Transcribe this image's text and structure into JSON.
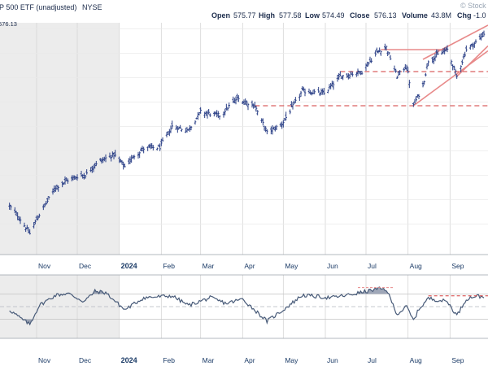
{
  "header": {
    "title": "P 500 ETF (unadjusted)",
    "exchange": "NYSE",
    "open_label": "Open",
    "open": "575.77",
    "high_label": "High",
    "high": "577.58",
    "low_label": "Low",
    "low": "574.49",
    "close_label": "Close",
    "close": "576.13",
    "volume_label": "Volume",
    "volume": "43.8M",
    "chg_label": "Chg",
    "chg": "-1.0",
    "watermark": "© Stock",
    "last_price_tag": "576.13"
  },
  "chart_data": [
    {
      "type": "ohlc",
      "title": "P 500 ETF (unadjusted)",
      "x_axis": {
        "month_labels": [
          "Nov",
          "Dec",
          "2024",
          "Feb",
          "Mar",
          "Apr",
          "May",
          "Jun",
          "Jul",
          "Aug",
          "Sep"
        ],
        "bold_labels": [
          "2024"
        ]
      },
      "ylim": [
        395,
        585
      ],
      "grid": true,
      "shaded_region": "start to end of 2023",
      "series": [
        {
          "key_points": [
            {
              "date": "2023-10-12",
              "close": 435
            },
            {
              "date": "2023-10-20",
              "close": 424
            },
            {
              "date": "2023-10-27",
              "close": 412
            },
            {
              "date": "2023-11-01",
              "close": 424
            },
            {
              "date": "2023-11-08",
              "close": 437
            },
            {
              "date": "2023-11-15",
              "close": 450
            },
            {
              "date": "2023-11-24",
              "close": 456
            },
            {
              "date": "2023-12-01",
              "close": 459
            },
            {
              "date": "2023-12-08",
              "close": 461
            },
            {
              "date": "2023-12-15",
              "close": 470
            },
            {
              "date": "2023-12-22",
              "close": 474
            },
            {
              "date": "2023-12-28",
              "close": 477
            },
            {
              "date": "2024-01-05",
              "close": 467
            },
            {
              "date": "2024-01-12",
              "close": 476
            },
            {
              "date": "2024-01-19",
              "close": 482
            },
            {
              "date": "2024-01-31",
              "close": 483
            },
            {
              "date": "2024-02-09",
              "close": 500
            },
            {
              "date": "2024-02-21",
              "close": 497
            },
            {
              "date": "2024-03-01",
              "close": 512
            },
            {
              "date": "2024-03-15",
              "close": 509
            },
            {
              "date": "2024-03-28",
              "close": 523
            },
            {
              "date": "2024-04-10",
              "close": 517
            },
            {
              "date": "2024-04-19",
              "close": 495
            },
            {
              "date": "2024-04-30",
              "close": 502
            },
            {
              "date": "2024-05-15",
              "close": 529
            },
            {
              "date": "2024-05-31",
              "close": 527
            },
            {
              "date": "2024-06-12",
              "close": 541
            },
            {
              "date": "2024-06-28",
              "close": 545
            },
            {
              "date": "2024-07-10",
              "close": 562
            },
            {
              "date": "2024-07-16",
              "close": 565
            },
            {
              "date": "2024-07-24",
              "close": 541
            },
            {
              "date": "2024-07-31",
              "close": 550
            },
            {
              "date": "2024-08-05",
              "close": 517
            },
            {
              "date": "2024-08-12",
              "close": 533
            },
            {
              "date": "2024-08-16",
              "close": 554
            },
            {
              "date": "2024-08-30",
              "close": 563
            },
            {
              "date": "2024-09-06",
              "close": 541
            },
            {
              "date": "2024-09-13",
              "close": 563
            },
            {
              "date": "2024-09-20",
              "close": 569
            },
            {
              "date": "2024-09-26",
              "close": 576
            }
          ]
        }
      ],
      "annotations": [
        {
          "type": "horizontal-dashed",
          "level": 545,
          "from": "2024-06-12",
          "to": "end"
        },
        {
          "type": "horizontal-dashed",
          "level": 517,
          "from": "2024-04-10",
          "to": "end"
        },
        {
          "type": "trendline-solid",
          "from": {
            "date": "2024-07-12",
            "value": 563
          },
          "to": {
            "date": "2024-08-30",
            "value": 563
          }
        },
        {
          "type": "trendline-solid",
          "from": {
            "date": "2024-08-05",
            "value": 517
          },
          "to": {
            "date": "end",
            "value": 562
          }
        },
        {
          "type": "trendline-solid",
          "from": {
            "date": "2024-08-12",
            "value": 555
          },
          "to": {
            "date": "end",
            "value": 583
          }
        },
        {
          "type": "trendline-solid",
          "from": {
            "date": "2024-09-06",
            "value": 541
          },
          "to": {
            "date": "end",
            "value": 566
          }
        }
      ]
    },
    {
      "type": "line",
      "indicator": "RSI",
      "ylim": [
        0,
        100
      ],
      "reference_lines": [
        70,
        50,
        30
      ],
      "fill_above": 70,
      "fill_below": 30,
      "series": [
        {
          "key_points": [
            {
              "date": "2023-10-12",
              "value": 45
            },
            {
              "date": "2023-10-20",
              "value": 32
            },
            {
              "date": "2023-10-27",
              "value": 22
            },
            {
              "date": "2023-11-03",
              "value": 52
            },
            {
              "date": "2023-11-15",
              "value": 68
            },
            {
              "date": "2023-11-24",
              "value": 71
            },
            {
              "date": "2023-12-06",
              "value": 58
            },
            {
              "date": "2023-12-14",
              "value": 74
            },
            {
              "date": "2023-12-22",
              "value": 72
            },
            {
              "date": "2024-01-05",
              "value": 45
            },
            {
              "date": "2024-01-19",
              "value": 64
            },
            {
              "date": "2024-02-09",
              "value": 67
            },
            {
              "date": "2024-02-21",
              "value": 52
            },
            {
              "date": "2024-03-08",
              "value": 64
            },
            {
              "date": "2024-03-20",
              "value": 55
            },
            {
              "date": "2024-04-01",
              "value": 62
            },
            {
              "date": "2024-04-19",
              "value": 27
            },
            {
              "date": "2024-05-01",
              "value": 45
            },
            {
              "date": "2024-05-15",
              "value": 68
            },
            {
              "date": "2024-06-05",
              "value": 64
            },
            {
              "date": "2024-06-20",
              "value": 69
            },
            {
              "date": "2024-07-10",
              "value": 78
            },
            {
              "date": "2024-07-16",
              "value": 77
            },
            {
              "date": "2024-07-24",
              "value": 38
            },
            {
              "date": "2024-07-31",
              "value": 50
            },
            {
              "date": "2024-08-05",
              "value": 28
            },
            {
              "date": "2024-08-09",
              "value": 46
            },
            {
              "date": "2024-08-16",
              "value": 63
            },
            {
              "date": "2024-08-30",
              "value": 58
            },
            {
              "date": "2024-09-06",
              "value": 36
            },
            {
              "date": "2024-09-13",
              "value": 62
            },
            {
              "date": "2024-09-20",
              "value": 67
            },
            {
              "date": "2024-09-26",
              "value": 65
            }
          ]
        }
      ]
    }
  ],
  "colors": {
    "price_bars": "#2a3f86",
    "rsi_line": "#475a78",
    "rsi_fill": "#7f8aa0",
    "trendline": "#e88a8a",
    "dashed_support": "#d23a3a",
    "shading": "#ececec",
    "grid": "#d6d6d6",
    "axis_text": "#1a3a66"
  }
}
